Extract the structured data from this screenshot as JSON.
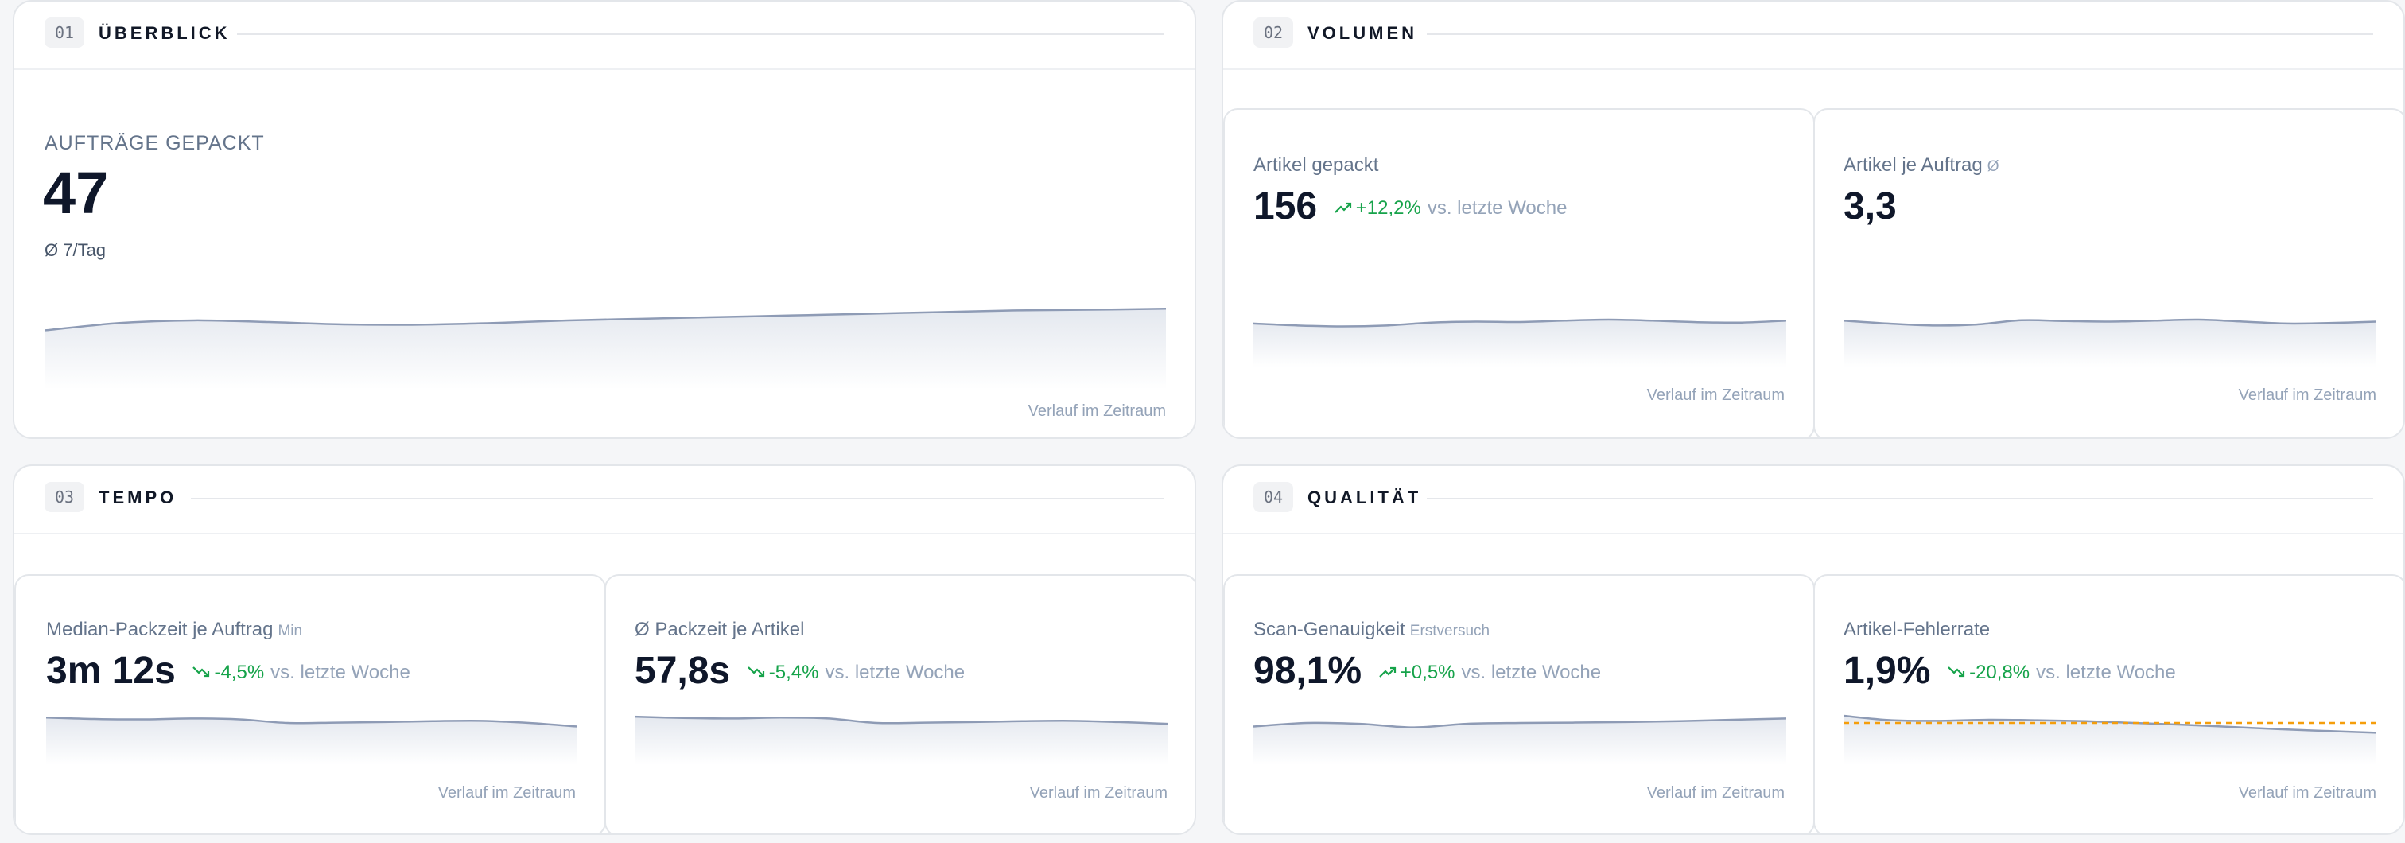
{
  "colors": {
    "line": "#8e9bb5",
    "fill_top": "#e4e8ef",
    "fill_bottom": "#ffffff",
    "positive": "#16a34a",
    "threshold": "#f59e0b"
  },
  "sections": [
    {
      "number": "01",
      "title": "ÜBERBLICK",
      "kpi": {
        "label": "AUFTRÄGE GEPACKT",
        "value": "47",
        "avg": "Ø 7/Tag",
        "trend": [
          0.2,
          0.42,
          0.5,
          0.45,
          0.38,
          0.37,
          0.42,
          0.5,
          0.55,
          0.6,
          0.65,
          0.7,
          0.75,
          0.8,
          0.82,
          0.85
        ],
        "footnote": "Verlauf im Zeitraum"
      }
    },
    {
      "number": "02",
      "title": "VOLUMEN",
      "cards": [
        {
          "label": "Artikel gepackt",
          "sub": "",
          "value": "156",
          "delta": "+12,2%",
          "delta_icon": "trend-up-icon",
          "compare": "vs. letzte Woche",
          "trend": [
            0.55,
            0.45,
            0.4,
            0.45,
            0.6,
            0.65,
            0.63,
            0.7,
            0.75,
            0.7,
            0.62,
            0.6,
            0.7
          ],
          "footnote": "Verlauf im Zeitraum"
        },
        {
          "label": "Artikel je Auftrag",
          "sub": "Ø",
          "value": "3,3",
          "delta": "",
          "compare": "",
          "trend": [
            0.7,
            0.55,
            0.45,
            0.5,
            0.72,
            0.68,
            0.65,
            0.7,
            0.75,
            0.65,
            0.55,
            0.58,
            0.65
          ],
          "footnote": "Verlauf im Zeitraum"
        }
      ]
    },
    {
      "number": "03",
      "title": "TEMPO",
      "cards": [
        {
          "label": "Median-Packzeit je Auftrag",
          "sub": "Min",
          "value": "3m 12s",
          "delta": "-4,5%",
          "delta_icon": "trend-down-icon",
          "compare": "vs. letzte Woche",
          "trend": [
            0.9,
            0.82,
            0.8,
            0.85,
            0.8,
            0.6,
            0.62,
            0.65,
            0.7,
            0.72,
            0.6,
            0.4
          ],
          "footnote": "Verlauf im Zeitraum"
        },
        {
          "label": "Ø Packzeit je Artikel",
          "sub": "",
          "value": "57,8s",
          "delta": "-5,4%",
          "delta_icon": "trend-down-icon",
          "compare": "vs. letzte Woche",
          "trend": [
            0.95,
            0.88,
            0.85,
            0.9,
            0.85,
            0.6,
            0.62,
            0.65,
            0.7,
            0.72,
            0.65,
            0.55
          ],
          "footnote": "Verlauf im Zeitraum"
        }
      ]
    },
    {
      "number": "04",
      "title": "QUALITÄT",
      "cards": [
        {
          "label": "Scan-Genauigkeit",
          "sub": "Erstversuch",
          "value": "98,1%",
          "delta": "+0,5%",
          "delta_icon": "trend-up-icon",
          "compare": "vs. letzte Woche",
          "trend": [
            0.4,
            0.6,
            0.55,
            0.35,
            0.55,
            0.6,
            0.62,
            0.65,
            0.7,
            0.78,
            0.85
          ],
          "footnote": "Verlauf im Zeitraum"
        },
        {
          "label": "Artikel-Fehlerrate",
          "sub": "",
          "value": "1,9%",
          "delta": "-20,8%",
          "delta_icon": "trend-down-icon",
          "compare": "vs. letzte Woche",
          "trend": [
            1.0,
            0.75,
            0.72,
            0.78,
            0.75,
            0.7,
            0.6,
            0.5,
            0.38,
            0.25,
            0.15,
            0.05
          ],
          "threshold": 0.6,
          "footnote": "Verlauf im Zeitraum"
        }
      ]
    }
  ]
}
